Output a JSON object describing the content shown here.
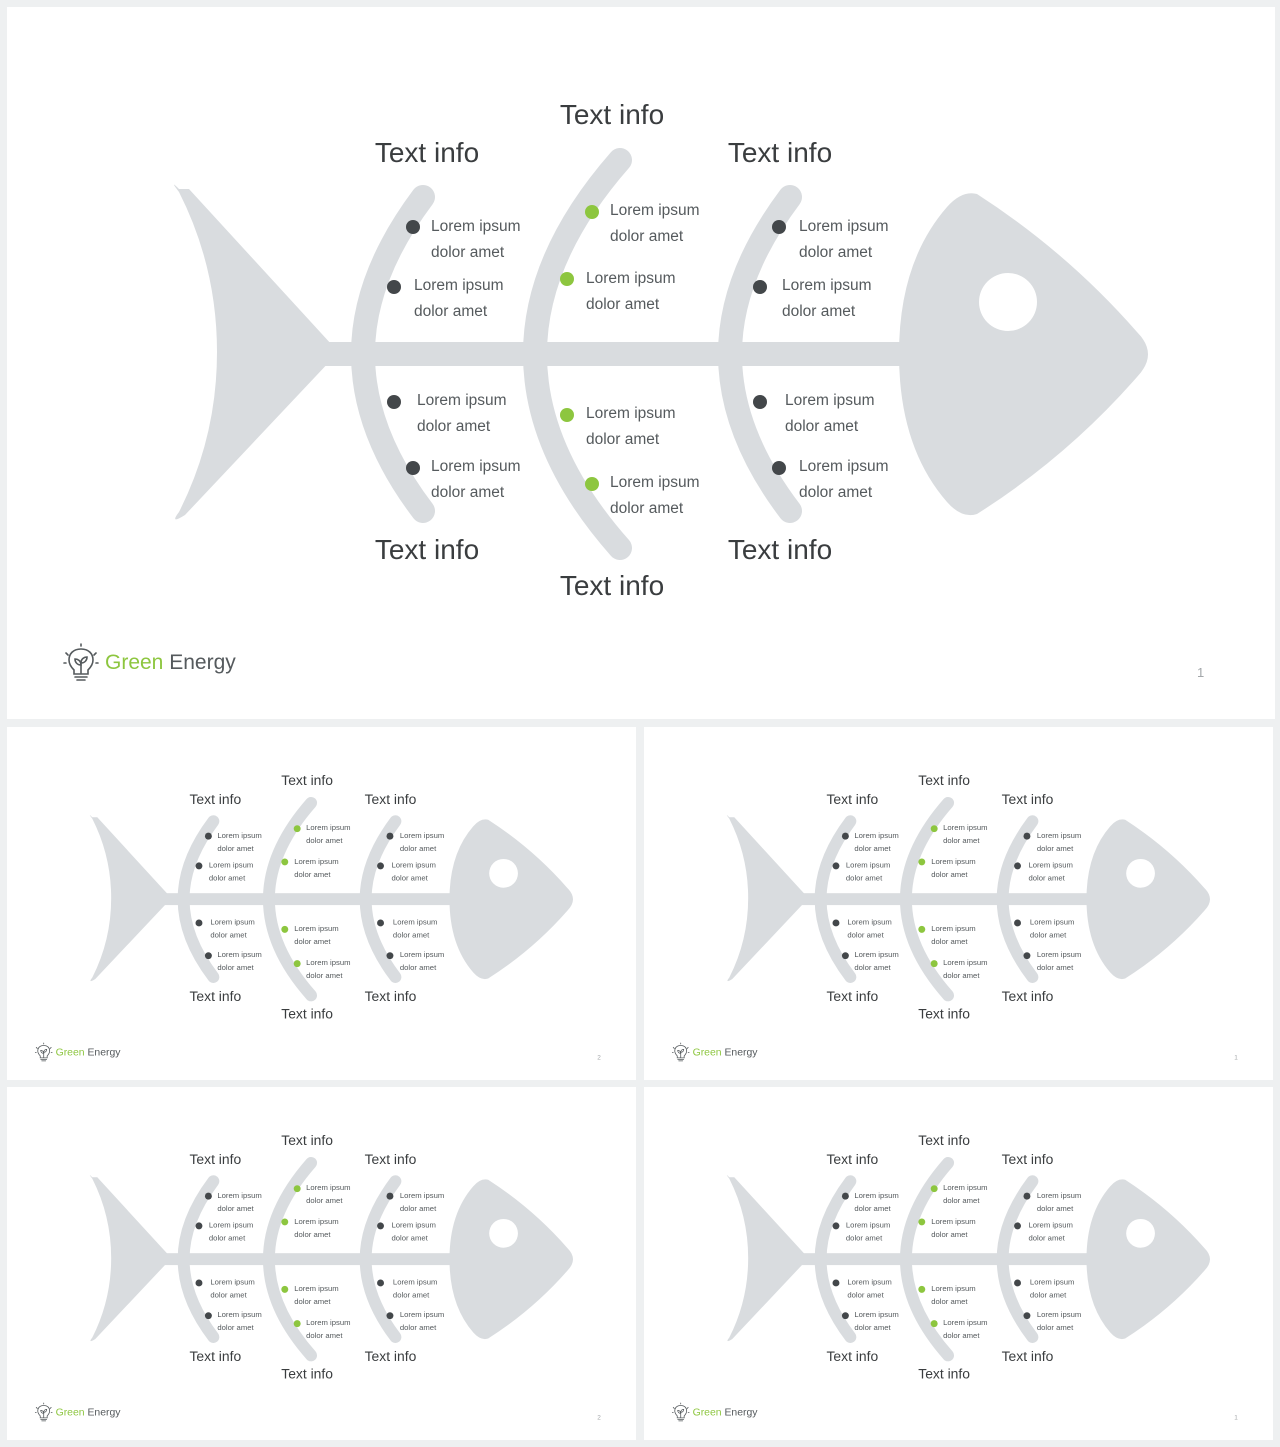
{
  "colors": {
    "bone": "#d9dcdf",
    "dark_dot": "#43474a",
    "green_dot": "#8dc63f",
    "label": "#3a3d3f",
    "item_text": "#555a5d"
  },
  "brand": {
    "green_word": "Green",
    "rest_word": "Energy",
    "icon": "lightbulb-leaf-icon"
  },
  "slides": [
    {
      "page_number": "1",
      "labels": {
        "top_left": "Text info",
        "top_center": "Text info",
        "top_right": "Text info",
        "bottom_left": "Text info",
        "bottom_center": "Text info",
        "bottom_right": "Text info"
      },
      "items": [
        {
          "line1": "Lorem ipsum",
          "line2": "dolor amet"
        },
        {
          "line1": "Lorem ipsum",
          "line2": "dolor amet"
        },
        {
          "line1": "Lorem ipsum",
          "line2": "dolor amet"
        },
        {
          "line1": "Lorem ipsum",
          "line2": "dolor amet"
        },
        {
          "line1": "Lorem ipsum",
          "line2": "dolor amet"
        },
        {
          "line1": "Lorem ipsum",
          "line2": "dolor amet"
        },
        {
          "line1": "Lorem ipsum",
          "line2": "dolor amet"
        },
        {
          "line1": "Lorem ipsum",
          "line2": "dolor amet"
        },
        {
          "line1": "Lorem ipsum",
          "line2": "dolor amet"
        },
        {
          "line1": "Lorem ipsum",
          "line2": "dolor amet"
        },
        {
          "line1": "Lorem ipsum",
          "line2": "dolor amet"
        },
        {
          "line1": "Lorem ipsum",
          "line2": "dolor amet"
        }
      ]
    },
    {
      "page_number": "2",
      "labels": {
        "top_left": "Text info",
        "top_center": "Text info",
        "top_right": "Text info",
        "bottom_left": "Text info",
        "bottom_center": "Text info",
        "bottom_right": "Text info"
      },
      "items": [
        {
          "line1": "Lorem ipsum",
          "line2": "dolor amet"
        },
        {
          "line1": "Lorem ipsum",
          "line2": "dolor amet"
        },
        {
          "line1": "Lorem ipsum",
          "line2": "dolor amet"
        },
        {
          "line1": "Lorem ipsum",
          "line2": "dolor amet"
        },
        {
          "line1": "Lorem ipsum",
          "line2": "dolor amet"
        },
        {
          "line1": "Lorem ipsum",
          "line2": "dolor amet"
        },
        {
          "line1": "Lorem ipsum",
          "line2": "dolor amet"
        },
        {
          "line1": "Lorem ipsum",
          "line2": "dolor amet"
        },
        {
          "line1": "Lorem ipsum",
          "line2": "dolor amet"
        },
        {
          "line1": "Lorem ipsum",
          "line2": "dolor amet"
        },
        {
          "line1": "Lorem ipsum",
          "line2": "dolor amet"
        },
        {
          "line1": "Lorem ipsum",
          "line2": "dolor amet"
        }
      ]
    },
    {
      "page_number": "1",
      "labels": {
        "top_left": "Text info",
        "top_center": "Text info",
        "top_right": "Text info",
        "bottom_left": "Text info",
        "bottom_center": "Text info",
        "bottom_right": "Text info"
      },
      "items": [
        {
          "line1": "Lorem ipsum",
          "line2": "dolor amet"
        },
        {
          "line1": "Lorem ipsum",
          "line2": "dolor amet"
        },
        {
          "line1": "Lorem ipsum",
          "line2": "dolor amet"
        },
        {
          "line1": "Lorem ipsum",
          "line2": "dolor amet"
        },
        {
          "line1": "Lorem ipsum",
          "line2": "dolor amet"
        },
        {
          "line1": "Lorem ipsum",
          "line2": "dolor amet"
        },
        {
          "line1": "Lorem ipsum",
          "line2": "dolor amet"
        },
        {
          "line1": "Lorem ipsum",
          "line2": "dolor amet"
        },
        {
          "line1": "Lorem ipsum",
          "line2": "dolor amet"
        },
        {
          "line1": "Lorem ipsum",
          "line2": "dolor amet"
        },
        {
          "line1": "Lorem ipsum",
          "line2": "dolor amet"
        },
        {
          "line1": "Lorem ipsum",
          "line2": "dolor amet"
        }
      ]
    },
    {
      "page_number": "2",
      "labels": {
        "top_left": "Text info",
        "top_center": "Text info",
        "top_right": "Text info",
        "bottom_left": "Text info",
        "bottom_center": "Text info",
        "bottom_right": "Text info"
      },
      "items": [
        {
          "line1": "Lorem ipsum",
          "line2": "dolor amet"
        },
        {
          "line1": "Lorem ipsum",
          "line2": "dolor amet"
        },
        {
          "line1": "Lorem ipsum",
          "line2": "dolor amet"
        },
        {
          "line1": "Lorem ipsum",
          "line2": "dolor amet"
        },
        {
          "line1": "Lorem ipsum",
          "line2": "dolor amet"
        },
        {
          "line1": "Lorem ipsum",
          "line2": "dolor amet"
        },
        {
          "line1": "Lorem ipsum",
          "line2": "dolor amet"
        },
        {
          "line1": "Lorem ipsum",
          "line2": "dolor amet"
        },
        {
          "line1": "Lorem ipsum",
          "line2": "dolor amet"
        },
        {
          "line1": "Lorem ipsum",
          "line2": "dolor amet"
        },
        {
          "line1": "Lorem ipsum",
          "line2": "dolor amet"
        },
        {
          "line1": "Lorem ipsum",
          "line2": "dolor amet"
        }
      ]
    },
    {
      "page_number": "1",
      "labels": {
        "top_left": "Text info",
        "top_center": "Text info",
        "top_right": "Text info",
        "bottom_left": "Text info",
        "bottom_center": "Text info",
        "bottom_right": "Text info"
      },
      "items": [
        {
          "line1": "Lorem ipsum",
          "line2": "dolor amet"
        },
        {
          "line1": "Lorem ipsum",
          "line2": "dolor amet"
        },
        {
          "line1": "Lorem ipsum",
          "line2": "dolor amet"
        },
        {
          "line1": "Lorem ipsum",
          "line2": "dolor amet"
        },
        {
          "line1": "Lorem ipsum",
          "line2": "dolor amet"
        },
        {
          "line1": "Lorem ipsum",
          "line2": "dolor amet"
        },
        {
          "line1": "Lorem ipsum",
          "line2": "dolor amet"
        },
        {
          "line1": "Lorem ipsum",
          "line2": "dolor amet"
        },
        {
          "line1": "Lorem ipsum",
          "line2": "dolor amet"
        },
        {
          "line1": "Lorem ipsum",
          "line2": "dolor amet"
        },
        {
          "line1": "Lorem ipsum",
          "line2": "dolor amet"
        },
        {
          "line1": "Lorem ipsum",
          "line2": "dolor amet"
        }
      ]
    }
  ]
}
